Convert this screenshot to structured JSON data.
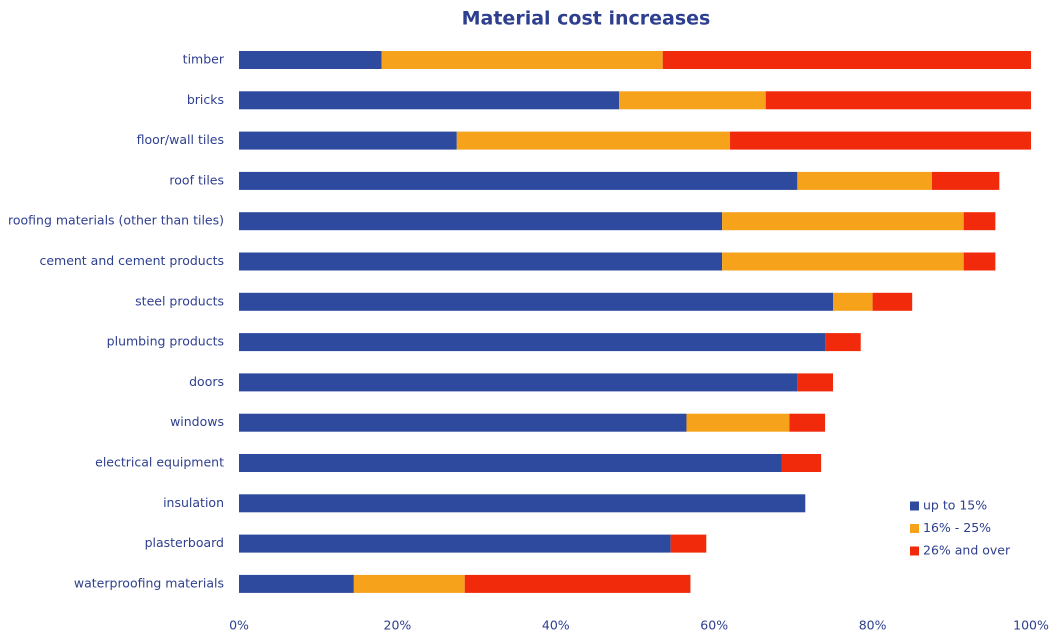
{
  "chart_data": {
    "type": "stacked_barh",
    "title": "Material cost increases",
    "categories": [
      "timber",
      "bricks",
      "floor/wall tiles",
      "roof tiles",
      "roofing materials (other than tiles)",
      "cement and cement products",
      "steel products",
      "plumbing products",
      "doors",
      "windows",
      "electrical equipment",
      "insulation",
      "plasterboard",
      "waterproofing materials"
    ],
    "series": [
      {
        "name": "up to 15%",
        "color": "#2e4a9e",
        "values": [
          18,
          48,
          27.5,
          70.5,
          61,
          61,
          75,
          74,
          70.5,
          56.5,
          68.5,
          71.5,
          54.5,
          14.5
        ]
      },
      {
        "name": "16% - 25%",
        "color": "#f7a21b",
        "values": [
          35.5,
          18.5,
          34.5,
          17,
          30.5,
          30.5,
          5,
          0,
          0,
          13,
          0,
          0,
          0,
          14
        ]
      },
      {
        "name": "26% and over",
        "color": "#f02a0a",
        "values": [
          46.5,
          33.5,
          38,
          8.5,
          4,
          4,
          5,
          4.5,
          4.5,
          4.5,
          5,
          0,
          4.5,
          28.5
        ]
      }
    ],
    "xlim": [
      0,
      100
    ],
    "xticks": [
      {
        "value": 0,
        "label": "0%"
      },
      {
        "value": 20,
        "label": "20%"
      },
      {
        "value": 40,
        "label": "40%"
      },
      {
        "value": 60,
        "label": "60%"
      },
      {
        "value": 80,
        "label": "80%"
      },
      {
        "value": 100,
        "label": "100%"
      }
    ],
    "legend": "lower right"
  }
}
